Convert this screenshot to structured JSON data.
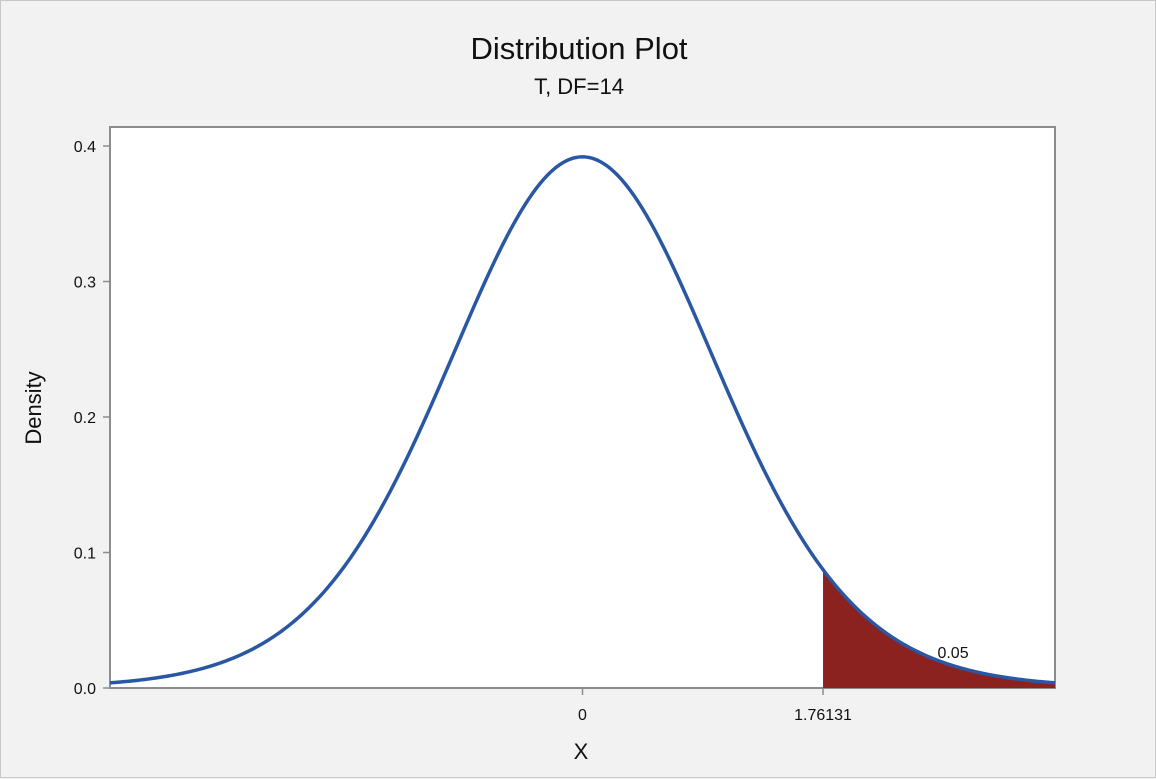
{
  "chart_data": {
    "type": "line",
    "title": "Distribution Plot",
    "subtitle": "T, DF=14",
    "xlabel": "X",
    "ylabel": "Density",
    "distribution": "T",
    "df": 14,
    "xlim": [
      -3.46,
      3.46
    ],
    "ylim": [
      0.0,
      0.4
    ],
    "x_ticks": [
      0,
      1.76131
    ],
    "x_tick_labels": [
      "0",
      "1.76131"
    ],
    "y_ticks": [
      0.0,
      0.1,
      0.2,
      0.3,
      0.4
    ],
    "y_tick_labels": [
      "0.0",
      "0.1",
      "0.2",
      "0.3",
      "0.4"
    ],
    "shaded_region": {
      "from": 1.76131,
      "to": 3.46,
      "area": 0.05,
      "label": "0.05"
    },
    "peak_density": 0.392,
    "grid": false,
    "colors": {
      "curve": "#2957a4",
      "shade": "#8b2220",
      "plot_bg": "#ffffff",
      "frame_bg": "#f2f2f2",
      "plot_border": "#8c8c8c"
    }
  }
}
